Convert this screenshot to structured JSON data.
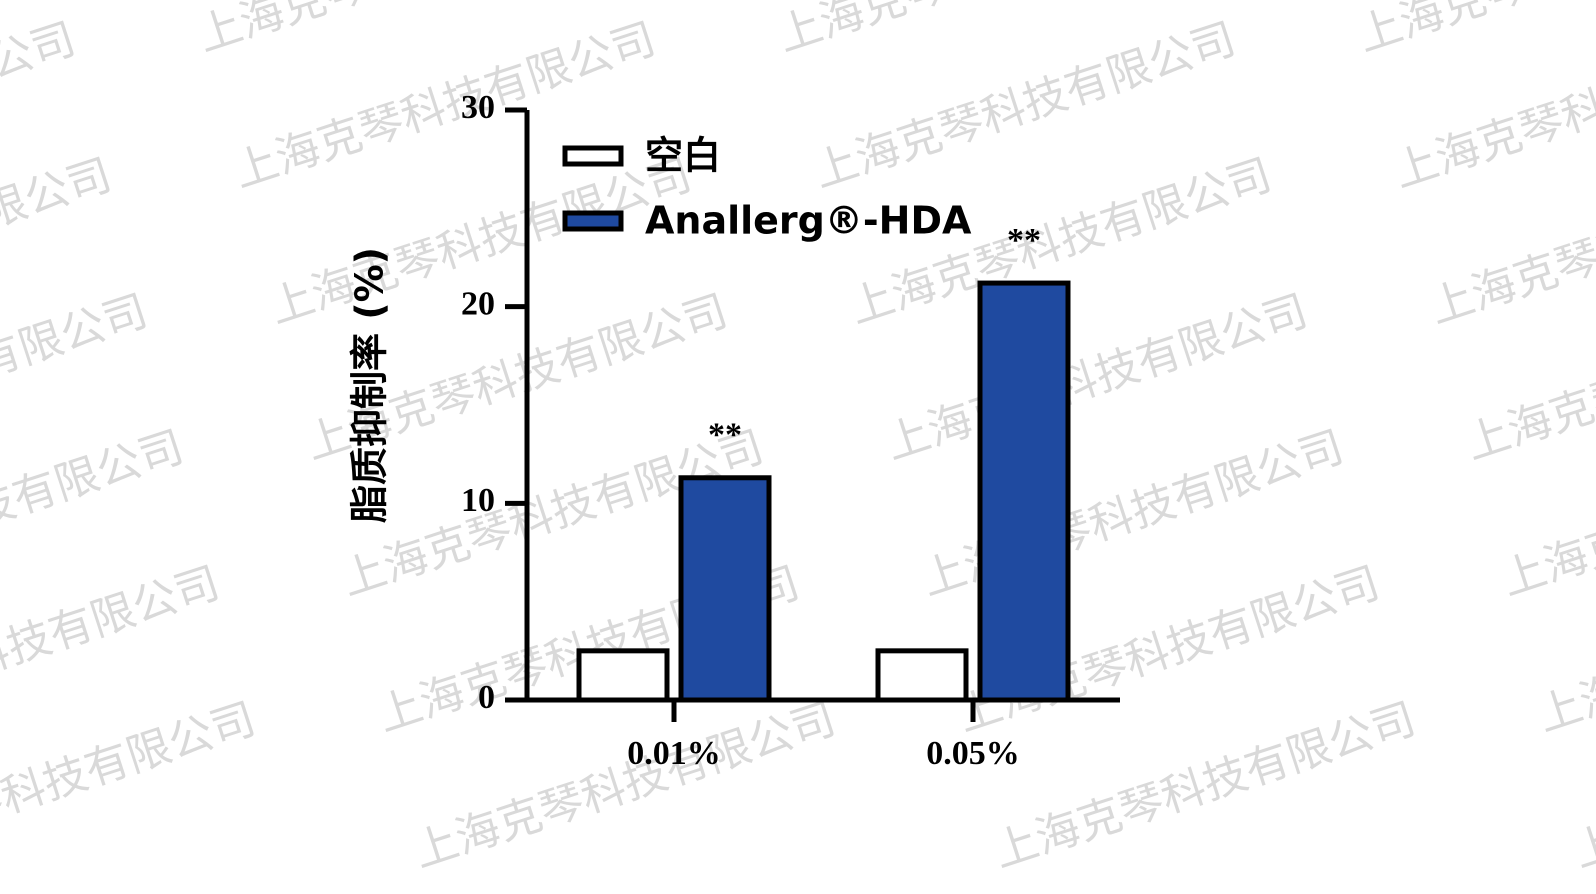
{
  "chart_data": {
    "type": "bar",
    "watermark": "上海克琴科技有限公司",
    "y_label": "脂质抑制率 (%)",
    "categories": [
      "0.01%",
      "0.05%"
    ],
    "series": [
      {
        "name": "空白",
        "color": "#ffffff",
        "values": [
          2.5,
          2.5
        ]
      },
      {
        "name": "Anallerg®-HDA",
        "color": "#1f4aa0",
        "values": [
          11.3,
          21.2
        ],
        "significance": [
          "**",
          "**"
        ]
      }
    ],
    "ylim": [
      0,
      30
    ],
    "yticks": [
      0,
      10,
      20,
      30
    ]
  }
}
